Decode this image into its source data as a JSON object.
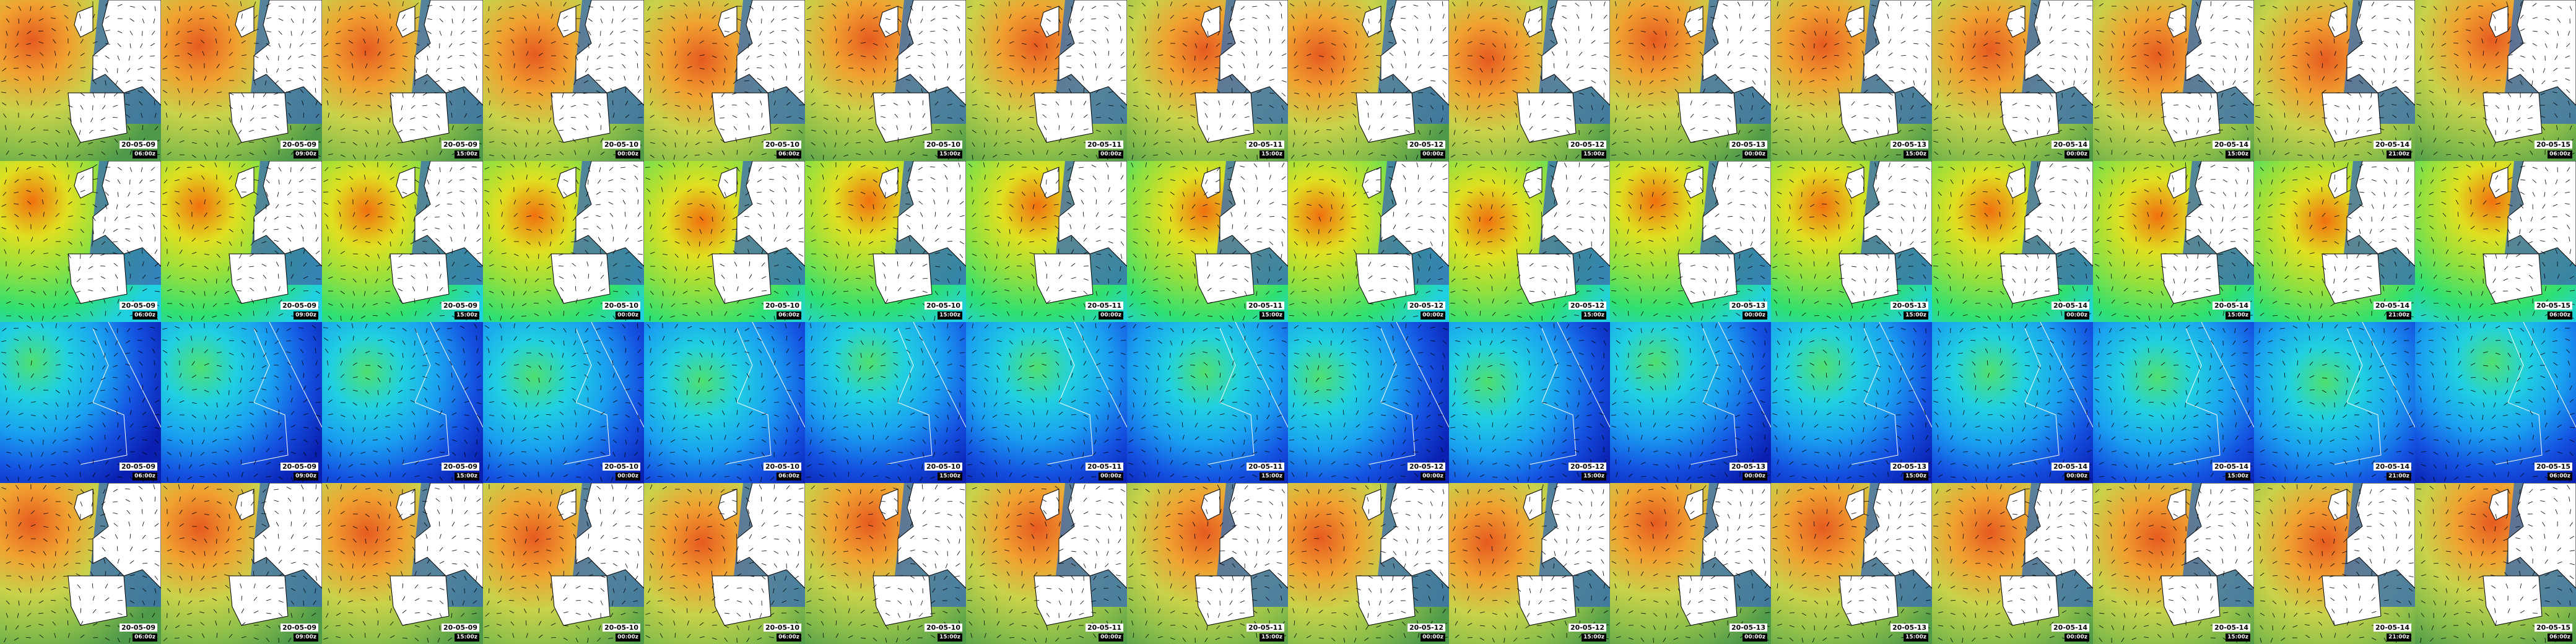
{
  "columns": [
    {
      "date": "20-05-09",
      "time": "06:00z"
    },
    {
      "date": "20-05-09",
      "time": "09:00z"
    },
    {
      "date": "20-05-09",
      "time": "15:00z"
    },
    {
      "date": "20-05-10",
      "time": "00:00z"
    },
    {
      "date": "20-05-10",
      "time": "06:00z"
    },
    {
      "date": "20-05-10",
      "time": "15:00z"
    },
    {
      "date": "20-05-11",
      "time": "00:00z"
    },
    {
      "date": "20-05-11",
      "time": "15:00z"
    },
    {
      "date": "20-05-12",
      "time": "00:00z"
    },
    {
      "date": "20-05-12",
      "time": "15:00z"
    },
    {
      "date": "20-05-13",
      "time": "00:00z"
    },
    {
      "date": "20-05-13",
      "time": "15:00z"
    },
    {
      "date": "20-05-14",
      "time": "00:00z"
    },
    {
      "date": "20-05-14",
      "time": "15:00z"
    },
    {
      "date": "20-05-14",
      "time": "21:00z"
    },
    {
      "date": "20-05-15",
      "time": "06:00z"
    }
  ],
  "rows": 4
}
